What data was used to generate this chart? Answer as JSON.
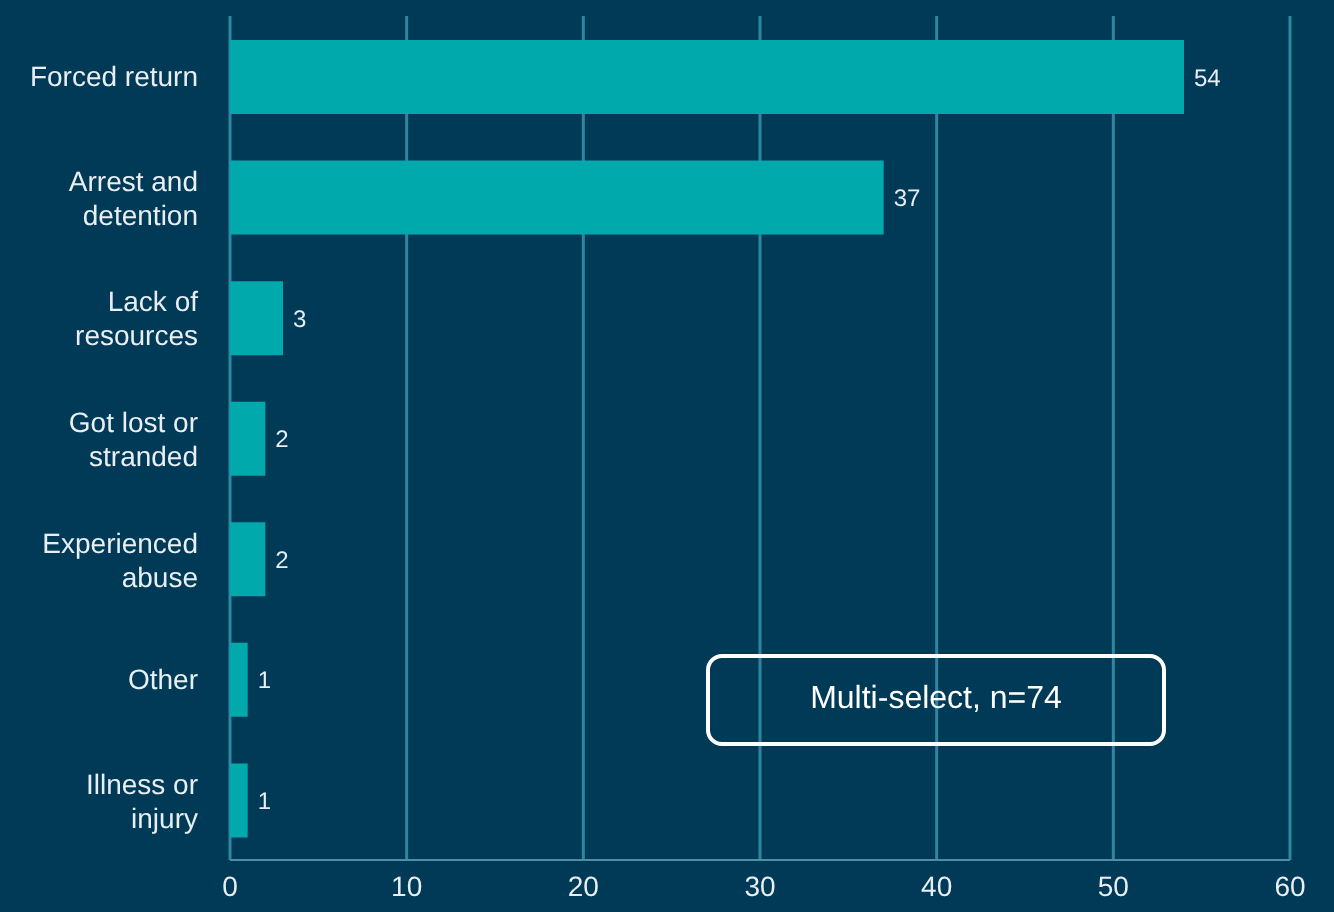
{
  "chart_data": {
    "type": "bar",
    "orientation": "horizontal",
    "categories": [
      "Forced return",
      "Arrest and detention",
      "Lack of resources",
      "Got lost or stranded",
      "Experienced abuse",
      "Other",
      "Illness or injury"
    ],
    "values": [
      54,
      37,
      3,
      2,
      2,
      1,
      1
    ],
    "color": "#00a9ac",
    "xlim": [
      0,
      60
    ],
    "xticks": [
      0,
      10,
      20,
      30,
      40,
      50,
      60
    ],
    "grid": "x",
    "data_labels": true,
    "annotations": [
      "Multi-select, n=74"
    ]
  }
}
